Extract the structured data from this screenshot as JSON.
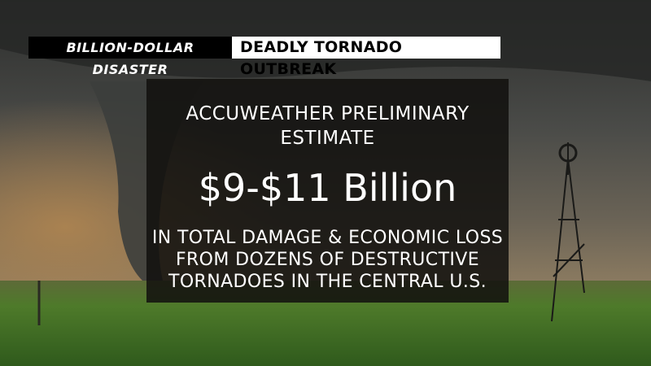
{
  "banner": {
    "label": "BILLION-DOLLAR DISASTER",
    "headline": "DEADLY TORNADO OUTBREAK"
  },
  "card": {
    "heading_lines": [
      "ACCUWEATHER PRELIMINARY",
      "ESTIMATE"
    ],
    "estimate": "$9-$11 Billion",
    "body_lines": [
      "IN TOTAL DAMAGE & ECONOMIC LOSS",
      "FROM DOZENS OF DESTRUCTIVE",
      "TORNADOES IN THE CENTRAL U.S."
    ]
  }
}
